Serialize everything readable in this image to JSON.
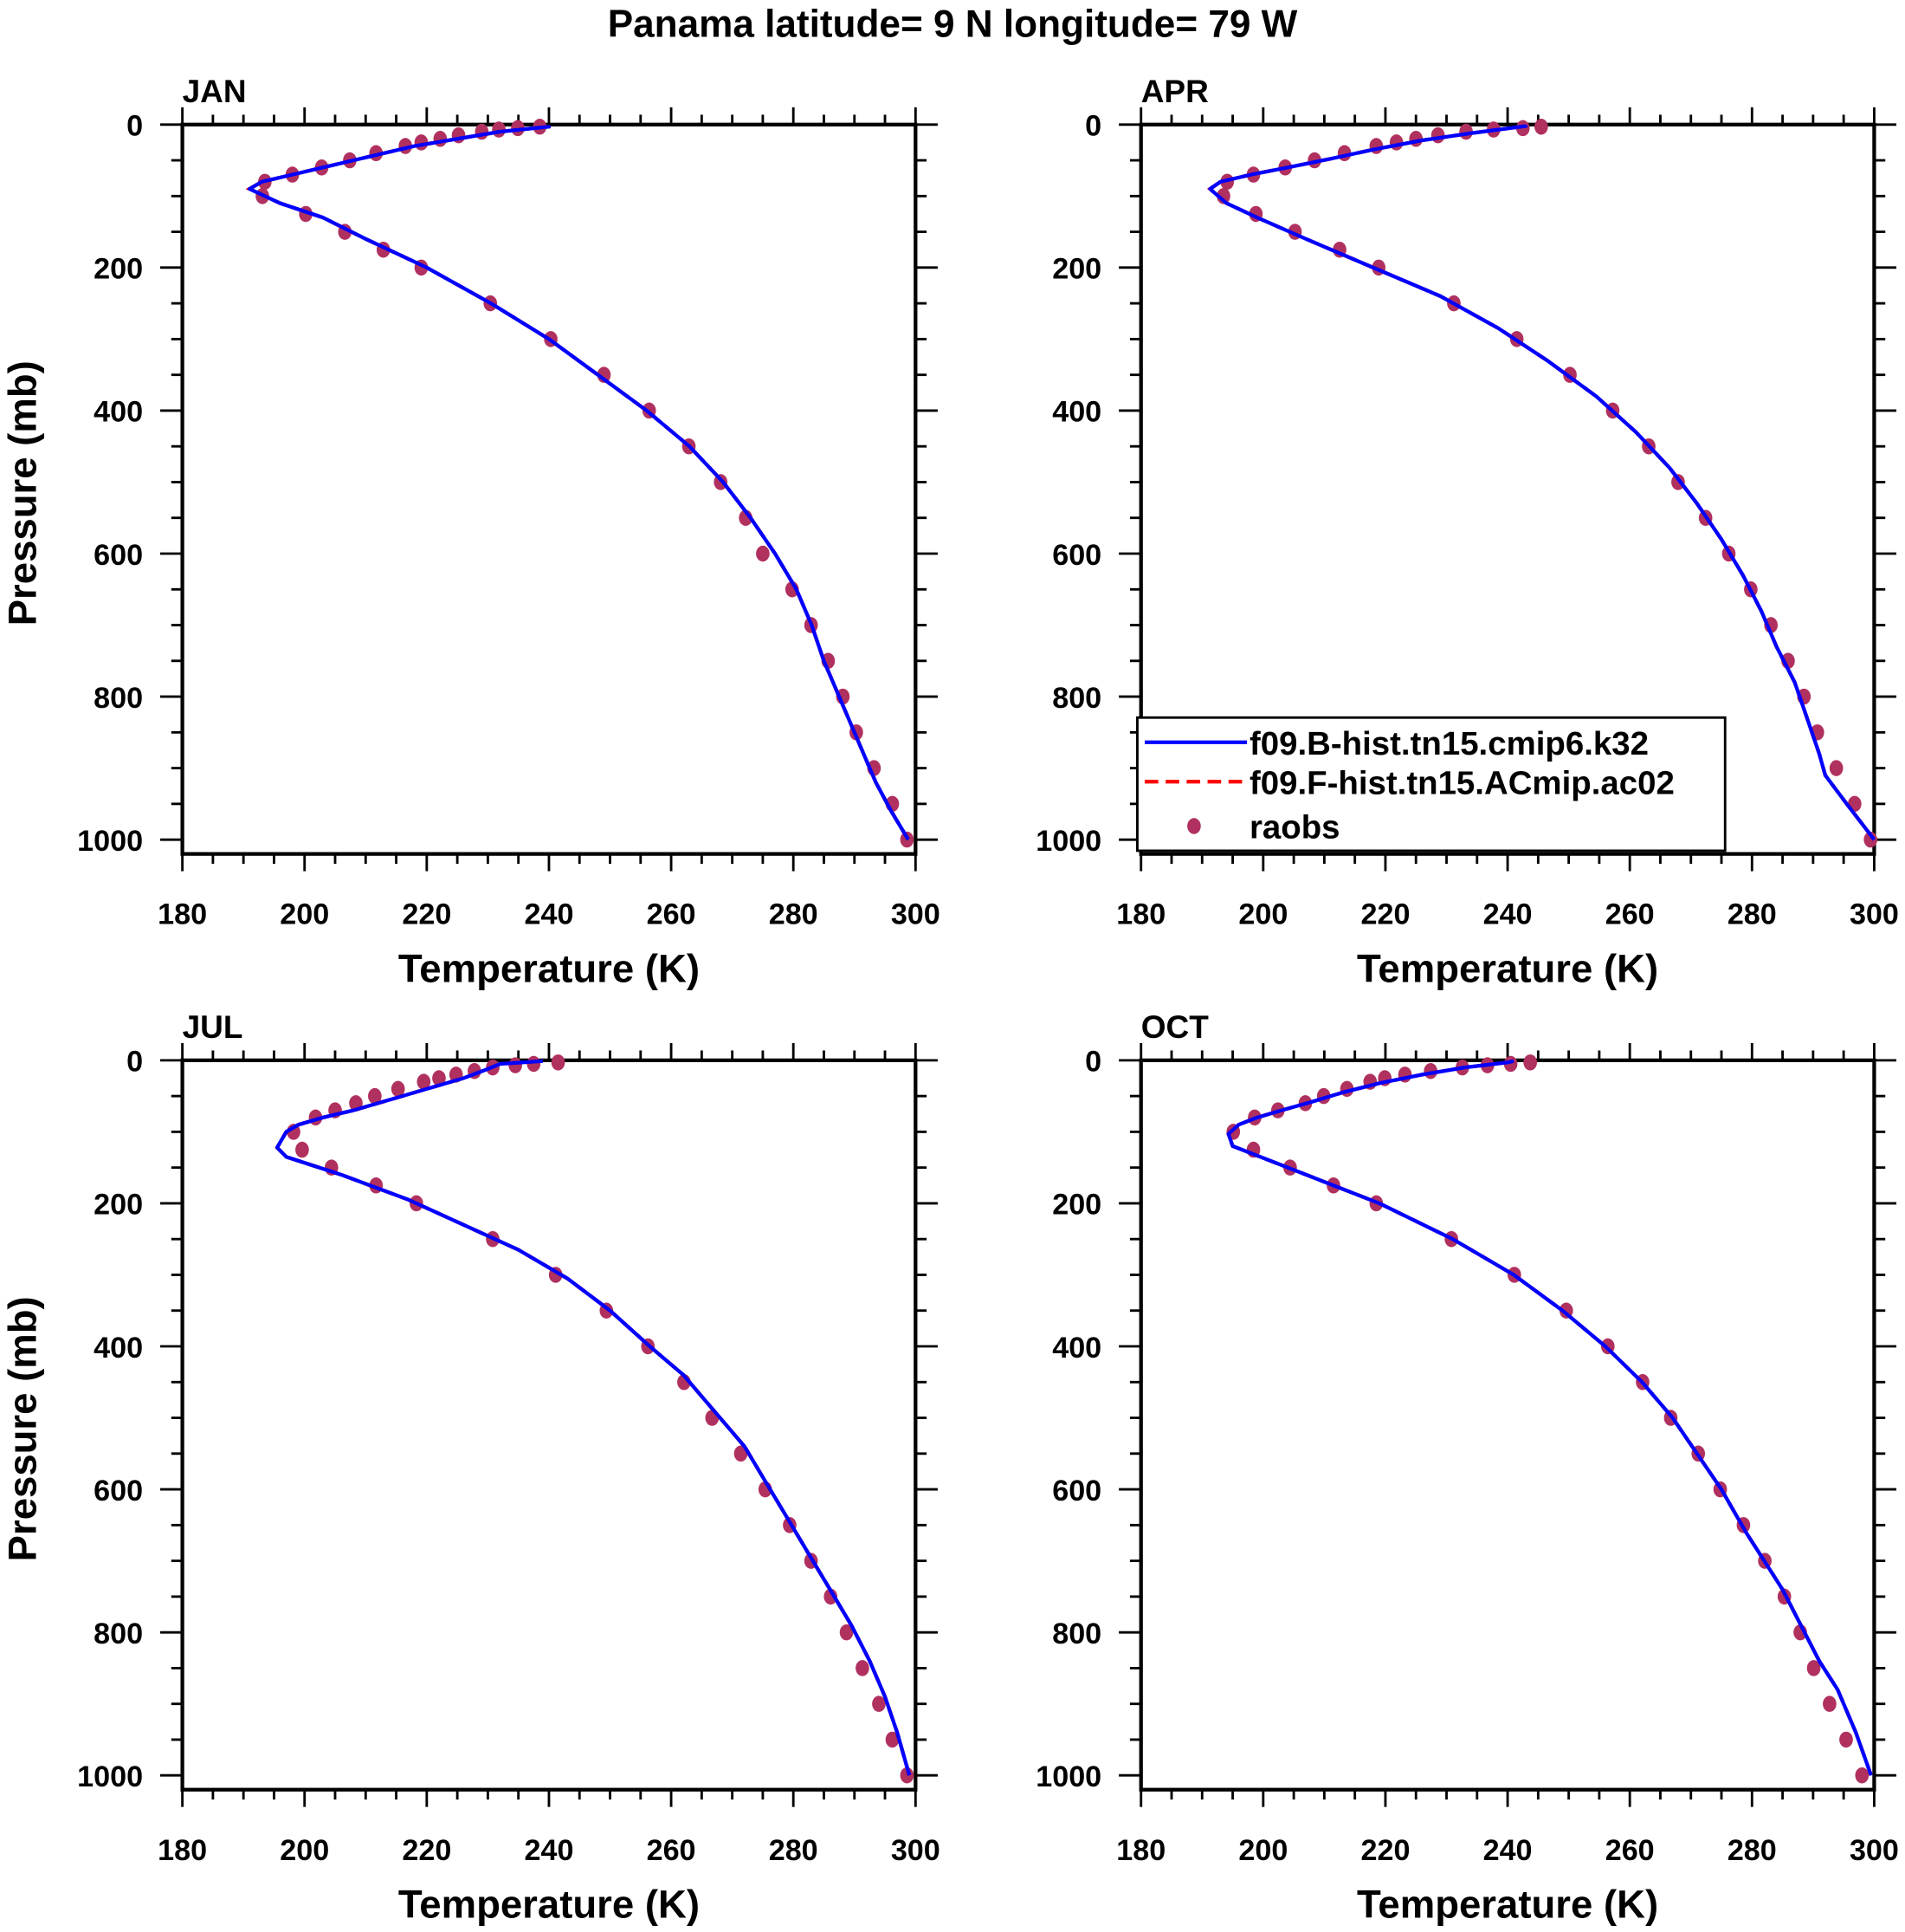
{
  "title": "Panama  latitude= 9 N longitude= 79 W",
  "colors": {
    "model_b": "#0000ff",
    "model_f": "#ff0000",
    "raobs": "#b03060",
    "axis": "#000000"
  },
  "chart_data": {
    "type": "line",
    "xlabel": "Temperature (K)",
    "ylabel": "Pressure (mb)",
    "xlim": [
      180,
      300
    ],
    "ylim": [
      1020,
      0
    ],
    "y_inverted": true,
    "xticks": [
      180,
      200,
      220,
      240,
      260,
      280,
      300
    ],
    "yticks": [
      0,
      200,
      400,
      600,
      800,
      1000
    ],
    "grid": false,
    "legend": {
      "placement": "bottom-right of APR panel",
      "entries": [
        {
          "label": "f09.B-hist.tn15.cmip6.k32",
          "style": "solid-line",
          "color": "#0000ff"
        },
        {
          "label": "f09.F-hist.tn15.ACmip.ac02",
          "style": "dashed-line",
          "color": "#ff0000"
        },
        {
          "label": "raobs",
          "style": "marker",
          "color": "#b03060"
        }
      ]
    },
    "raobs_pressure": [
      1000,
      950,
      900,
      850,
      800,
      750,
      700,
      650,
      600,
      550,
      500,
      450,
      400,
      350,
      300,
      250,
      200,
      175,
      150,
      125,
      100,
      80,
      70,
      60,
      50,
      40,
      30,
      25,
      20,
      15,
      10,
      7,
      5,
      3
    ],
    "panels": [
      {
        "label": "JAN",
        "raobs_T": [
          298.6,
          296.2,
          293.2,
          290.3,
          288.1,
          285.7,
          282.9,
          279.8,
          275.0,
          272.2,
          268.1,
          262.9,
          256.4,
          249.0,
          240.3,
          230.4,
          219.1,
          212.9,
          206.6,
          200.2,
          193.1,
          193.5,
          198.0,
          202.8,
          207.4,
          211.7,
          216.5,
          219.1,
          222.2,
          225.2,
          229.0,
          231.8,
          234.9,
          238.5
        ],
        "model": [
          [
            298.8,
            1000
          ],
          [
            296,
            960
          ],
          [
            293.5,
            920
          ],
          [
            292.5,
            900
          ],
          [
            290,
            850
          ],
          [
            287.5,
            800
          ],
          [
            285,
            750
          ],
          [
            283,
            700
          ],
          [
            280.5,
            650
          ],
          [
            277,
            600
          ],
          [
            273,
            550
          ],
          [
            268.5,
            500
          ],
          [
            263,
            450
          ],
          [
            256,
            400
          ],
          [
            248,
            350
          ],
          [
            240,
            300
          ],
          [
            230.5,
            250
          ],
          [
            220,
            200
          ],
          [
            210,
            160
          ],
          [
            203,
            130
          ],
          [
            196,
            110
          ],
          [
            191,
            90
          ],
          [
            193,
            80
          ],
          [
            198,
            70
          ],
          [
            203,
            60
          ],
          [
            208,
            50
          ],
          [
            213,
            40
          ],
          [
            218,
            30
          ],
          [
            225,
            20
          ],
          [
            232,
            10
          ],
          [
            240,
            3
          ],
          [
            240,
            1
          ]
        ]
      },
      {
        "label": "APR",
        "raobs_T": [
          299.4,
          296.8,
          293.8,
          290.7,
          288.5,
          285.9,
          283.1,
          279.8,
          276.2,
          272.4,
          267.9,
          263.1,
          257.2,
          250.2,
          241.5,
          231.2,
          218.9,
          212.5,
          205.2,
          198.8,
          193.5,
          194.1,
          198.4,
          203.6,
          208.4,
          213.3,
          218.5,
          221.8,
          225.0,
          228.6,
          233.2,
          237.7,
          242.5,
          245.5
        ],
        "model": [
          [
            300,
            1000
          ],
          [
            295.5,
            950
          ],
          [
            292,
            910
          ],
          [
            291,
            880
          ],
          [
            289,
            830
          ],
          [
            287,
            780
          ],
          [
            284,
            730
          ],
          [
            281.5,
            680
          ],
          [
            278.5,
            630
          ],
          [
            275,
            580
          ],
          [
            271,
            530
          ],
          [
            266.5,
            480
          ],
          [
            261,
            430
          ],
          [
            254.5,
            380
          ],
          [
            246.5,
            330
          ],
          [
            238.5,
            285
          ],
          [
            229,
            240
          ],
          [
            218,
            200
          ],
          [
            207,
            160
          ],
          [
            199,
            130
          ],
          [
            194,
            110
          ],
          [
            191.3,
            90
          ],
          [
            193,
            80
          ],
          [
            198,
            70
          ],
          [
            204,
            60
          ],
          [
            211,
            48
          ],
          [
            218,
            35
          ],
          [
            226,
            22
          ],
          [
            234,
            12
          ],
          [
            243,
            2
          ],
          [
            243,
            1
          ]
        ]
      },
      {
        "label": "JUL",
        "raobs_T": [
          298.6,
          296.2,
          294.0,
          291.3,
          288.7,
          286.1,
          282.9,
          279.4,
          275.4,
          271.4,
          266.7,
          262.1,
          256.2,
          249.4,
          241.1,
          230.8,
          218.3,
          211.7,
          204.4,
          199.6,
          198.2,
          201.8,
          205.0,
          208.4,
          211.5,
          215.3,
          219.5,
          222.0,
          224.8,
          227.8,
          230.8,
          234.5,
          237.5,
          241.5
        ],
        "model": [
          [
            299,
            1000
          ],
          [
            297,
            940
          ],
          [
            295,
            890
          ],
          [
            292.5,
            840
          ],
          [
            289.5,
            790
          ],
          [
            286,
            740
          ],
          [
            282.5,
            690
          ],
          [
            279,
            640
          ],
          [
            275.5,
            590
          ],
          [
            272,
            540
          ],
          [
            269.5,
            515
          ],
          [
            266,
            480
          ],
          [
            262,
            440
          ],
          [
            256.5,
            400
          ],
          [
            250,
            350
          ],
          [
            243,
            305
          ],
          [
            235,
            265
          ],
          [
            226,
            230
          ],
          [
            217,
            195
          ],
          [
            206,
            160
          ],
          [
            197,
            135
          ],
          [
            195.5,
            122
          ],
          [
            197,
            100
          ],
          [
            199,
            90
          ],
          [
            203,
            80
          ],
          [
            208,
            70
          ],
          [
            214,
            55
          ],
          [
            220,
            40
          ],
          [
            226,
            25
          ],
          [
            230,
            12
          ],
          [
            232,
            5
          ],
          [
            239,
            1
          ]
        ]
      },
      {
        "label": "OCT",
        "raobs_T": [
          298.0,
          295.4,
          292.7,
          290.1,
          287.9,
          285.3,
          282.1,
          278.6,
          274.8,
          271.2,
          266.7,
          262.1,
          256.4,
          249.6,
          241.1,
          230.8,
          218.5,
          211.5,
          204.4,
          198.4,
          195.1,
          198.6,
          202.4,
          206.9,
          209.9,
          213.7,
          217.5,
          219.9,
          223.2,
          227.4,
          232.6,
          236.7,
          240.5,
          243.7
        ],
        "model": [
          [
            299.5,
            1000
          ],
          [
            297,
            940
          ],
          [
            294,
            880
          ],
          [
            291,
            840
          ],
          [
            288,
            790
          ],
          [
            285,
            740
          ],
          [
            282,
            700
          ],
          [
            279,
            660
          ],
          [
            275,
            600
          ],
          [
            271,
            550
          ],
          [
            267,
            500
          ],
          [
            262,
            450
          ],
          [
            256,
            400
          ],
          [
            249,
            350
          ],
          [
            241,
            300
          ],
          [
            231,
            250
          ],
          [
            219,
            200
          ],
          [
            207,
            160
          ],
          [
            198,
            130
          ],
          [
            195,
            120
          ],
          [
            194.3,
            103
          ],
          [
            196,
            90
          ],
          [
            199,
            80
          ],
          [
            203,
            70
          ],
          [
            208,
            58
          ],
          [
            213,
            45
          ],
          [
            219,
            32
          ],
          [
            226,
            20
          ],
          [
            233,
            10
          ],
          [
            240,
            3
          ],
          [
            241,
            1
          ]
        ]
      }
    ]
  }
}
